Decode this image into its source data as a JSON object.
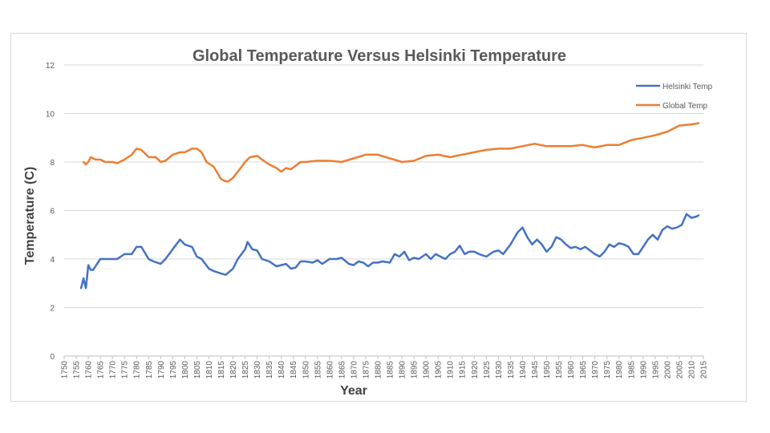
{
  "chart_data": {
    "type": "line",
    "title": "Global Temperature Versus Helsinki Temperature",
    "xlabel": "Year",
    "ylabel": "Temperature (C)",
    "xlim": [
      1750,
      2015
    ],
    "ylim": [
      0,
      12
    ],
    "y_ticks": [
      0,
      2,
      4,
      6,
      8,
      10,
      12
    ],
    "x_ticks": [
      1750,
      1755,
      1760,
      1765,
      1770,
      1775,
      1780,
      1785,
      1790,
      1795,
      1800,
      1805,
      1810,
      1815,
      1820,
      1825,
      1830,
      1835,
      1840,
      1845,
      1850,
      1855,
      1860,
      1865,
      1870,
      1875,
      1880,
      1885,
      1890,
      1895,
      1900,
      1905,
      1910,
      1915,
      1920,
      1925,
      1930,
      1935,
      1940,
      1945,
      1950,
      1955,
      1960,
      1965,
      1970,
      1975,
      1980,
      1985,
      1990,
      1995,
      2000,
      2005,
      2010,
      2015
    ],
    "grid": "horizontal",
    "legend_position": "top-right",
    "series": [
      {
        "name": "Helsinki Temp",
        "color": "#4472c4",
        "x": [
          1757,
          1758,
          1759,
          1760,
          1761,
          1762,
          1765,
          1770,
          1772,
          1775,
          1778,
          1780,
          1782,
          1785,
          1787,
          1790,
          1792,
          1795,
          1798,
          1800,
          1803,
          1805,
          1807,
          1810,
          1812,
          1815,
          1817,
          1820,
          1822,
          1825,
          1826,
          1828,
          1830,
          1832,
          1835,
          1838,
          1840,
          1842,
          1844,
          1846,
          1848,
          1850,
          1853,
          1855,
          1857,
          1860,
          1863,
          1865,
          1868,
          1870,
          1872,
          1874,
          1876,
          1878,
          1880,
          1882,
          1885,
          1887,
          1889,
          1891,
          1893,
          1895,
          1897,
          1900,
          1902,
          1904,
          1906,
          1908,
          1910,
          1912,
          1914,
          1916,
          1918,
          1920,
          1922,
          1925,
          1928,
          1930,
          1932,
          1935,
          1938,
          1940,
          1942,
          1944,
          1946,
          1948,
          1950,
          1952,
          1954,
          1956,
          1958,
          1960,
          1962,
          1964,
          1966,
          1968,
          1970,
          1972,
          1974,
          1976,
          1978,
          1980,
          1982,
          1984,
          1986,
          1988,
          1990,
          1992,
          1994,
          1996,
          1998,
          2000,
          2002,
          2004,
          2006,
          2008,
          2010,
          2012,
          2013
        ],
        "values": [
          2.8,
          3.2,
          2.8,
          3.75,
          3.55,
          3.55,
          4.0,
          4.0,
          4.0,
          4.2,
          4.2,
          4.5,
          4.5,
          4.0,
          3.9,
          3.8,
          4.0,
          4.4,
          4.8,
          4.6,
          4.5,
          4.1,
          4.0,
          3.6,
          3.5,
          3.4,
          3.35,
          3.6,
          4.0,
          4.4,
          4.7,
          4.4,
          4.35,
          4.0,
          3.9,
          3.7,
          3.75,
          3.8,
          3.6,
          3.65,
          3.9,
          3.9,
          3.85,
          3.95,
          3.8,
          4.0,
          4.0,
          4.05,
          3.8,
          3.75,
          3.9,
          3.85,
          3.7,
          3.85,
          3.85,
          3.9,
          3.85,
          4.2,
          4.1,
          4.3,
          3.95,
          4.05,
          4.0,
          4.2,
          4.0,
          4.2,
          4.1,
          4.0,
          4.2,
          4.3,
          4.55,
          4.2,
          4.3,
          4.3,
          4.2,
          4.1,
          4.3,
          4.35,
          4.2,
          4.6,
          5.1,
          5.3,
          4.9,
          4.6,
          4.8,
          4.6,
          4.3,
          4.5,
          4.9,
          4.8,
          4.6,
          4.45,
          4.5,
          4.4,
          4.5,
          4.35,
          4.2,
          4.1,
          4.3,
          4.6,
          4.5,
          4.65,
          4.6,
          4.5,
          4.2,
          4.2,
          4.5,
          4.8,
          5.0,
          4.8,
          5.2,
          5.35,
          5.25,
          5.3,
          5.4,
          5.85,
          5.7,
          5.75,
          5.8
        ]
      },
      {
        "name": "Global Temp",
        "color": "#ed7d31",
        "x": [
          1758,
          1759,
          1760,
          1761,
          1763,
          1765,
          1767,
          1770,
          1772,
          1775,
          1778,
          1780,
          1782,
          1785,
          1788,
          1790,
          1792,
          1795,
          1798,
          1800,
          1803,
          1805,
          1807,
          1809,
          1812,
          1815,
          1817,
          1818,
          1820,
          1822,
          1825,
          1827,
          1830,
          1832,
          1835,
          1838,
          1840,
          1842,
          1844,
          1846,
          1848,
          1850,
          1855,
          1860,
          1865,
          1870,
          1875,
          1878,
          1880,
          1885,
          1890,
          1895,
          1900,
          1905,
          1910,
          1915,
          1920,
          1925,
          1930,
          1935,
          1940,
          1945,
          1950,
          1955,
          1960,
          1965,
          1970,
          1975,
          1980,
          1985,
          1990,
          1995,
          2000,
          2005,
          2010,
          2013
        ],
        "values": [
          8.0,
          7.9,
          8.0,
          8.2,
          8.1,
          8.1,
          8.0,
          8.0,
          7.95,
          8.1,
          8.3,
          8.55,
          8.5,
          8.2,
          8.2,
          8.0,
          8.05,
          8.3,
          8.4,
          8.4,
          8.55,
          8.55,
          8.4,
          8.0,
          7.8,
          7.3,
          7.2,
          7.2,
          7.35,
          7.6,
          8.0,
          8.2,
          8.25,
          8.1,
          7.9,
          7.75,
          7.6,
          7.75,
          7.7,
          7.85,
          8.0,
          8.0,
          8.05,
          8.05,
          8.0,
          8.15,
          8.3,
          8.3,
          8.3,
          8.15,
          8.0,
          8.05,
          8.25,
          8.3,
          8.2,
          8.3,
          8.4,
          8.5,
          8.55,
          8.55,
          8.65,
          8.75,
          8.65,
          8.65,
          8.65,
          8.7,
          8.6,
          8.7,
          8.7,
          8.9,
          9.0,
          9.1,
          9.25,
          9.5,
          9.55,
          9.6
        ]
      }
    ]
  }
}
